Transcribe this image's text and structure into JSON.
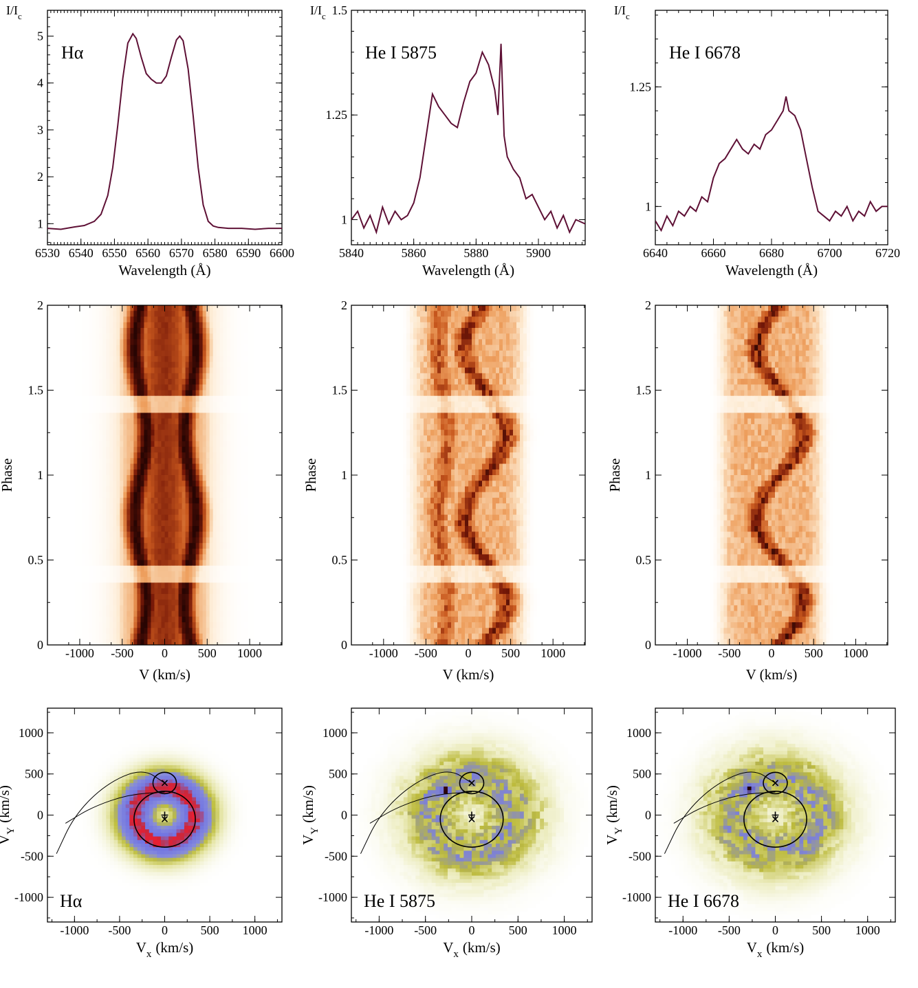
{
  "colors": {
    "profile_line": "#5e1035",
    "trailed_low": "#fff5ea",
    "trailed_mid": "#d9661c",
    "trailed_high": "#3a0a04",
    "tomogram_low": "#ffffff",
    "tomogram_green": "#b7b52a",
    "tomogram_blue": "#7b7fd8",
    "tomogram_red": "#e0203a"
  },
  "chart_data": [
    {
      "id": "profile-halpha",
      "type": "line",
      "annotation": "Hα",
      "xlabel": "Wavelength (Å)",
      "ylabel_main": "I/I",
      "ylabel_sub": "c",
      "xlim": [
        6530,
        6600
      ],
      "ylim": [
        0.55,
        5.55
      ],
      "xticks": [
        6530,
        6540,
        6550,
        6560,
        6570,
        6580,
        6590,
        6600
      ],
      "yticks": [
        1,
        2,
        3,
        4,
        5
      ],
      "ytick_labels": [
        "1",
        "2",
        "3",
        "4",
        "5"
      ],
      "x": [
        6530,
        6534,
        6538,
        6541,
        6544,
        6546,
        6548,
        6549.5,
        6551,
        6552.5,
        6554,
        6555.5,
        6556.5,
        6558,
        6559.5,
        6561,
        6562.5,
        6564,
        6565.5,
        6567,
        6568.5,
        6569.5,
        6570.5,
        6572,
        6573.5,
        6575,
        6576.5,
        6578,
        6579.5,
        6581,
        6584,
        6588,
        6592,
        6596,
        6600
      ],
      "y": [
        0.9,
        0.88,
        0.93,
        0.96,
        1.05,
        1.2,
        1.6,
        2.2,
        3.1,
        4.1,
        4.85,
        5.05,
        4.95,
        4.55,
        4.2,
        4.08,
        4.0,
        4.0,
        4.15,
        4.55,
        4.92,
        5.0,
        4.9,
        4.3,
        3.3,
        2.2,
        1.4,
        1.05,
        0.95,
        0.92,
        0.9,
        0.9,
        0.88,
        0.9,
        0.9
      ]
    },
    {
      "id": "profile-hei5875",
      "type": "line",
      "annotation": "He I 5875",
      "xlabel": "Wavelength (Å)",
      "ylabel_main": "I/I",
      "ylabel_sub": "c",
      "xlim": [
        5840,
        5915
      ],
      "ylim": [
        0.94,
        1.5
      ],
      "xticks": [
        5840,
        5860,
        5880,
        5900
      ],
      "yticks": [
        1,
        1.25,
        1.5
      ],
      "ytick_labels": [
        "1",
        "1.25",
        "1.5"
      ],
      "x": [
        5840,
        5842,
        5844,
        5846,
        5848,
        5850,
        5852,
        5854,
        5856,
        5858,
        5860,
        5862,
        5864,
        5866,
        5868,
        5870,
        5872,
        5874,
        5876,
        5878,
        5880,
        5882,
        5884,
        5886,
        5887,
        5888,
        5889,
        5890,
        5892,
        5894,
        5896,
        5898,
        5900,
        5902,
        5904,
        5906,
        5908,
        5910,
        5912,
        5915
      ],
      "y": [
        1.0,
        1.02,
        0.98,
        1.01,
        0.97,
        1.03,
        0.99,
        1.02,
        1.0,
        1.01,
        1.04,
        1.1,
        1.2,
        1.3,
        1.27,
        1.25,
        1.23,
        1.22,
        1.28,
        1.33,
        1.35,
        1.4,
        1.37,
        1.31,
        1.25,
        1.42,
        1.2,
        1.15,
        1.12,
        1.1,
        1.05,
        1.06,
        1.03,
        1.0,
        1.02,
        0.98,
        1.01,
        0.97,
        1.0,
        0.99
      ]
    },
    {
      "id": "profile-hei6678",
      "type": "line",
      "annotation": "He I 6678",
      "xlabel": "Wavelength (Å)",
      "ylabel_main": "I/I",
      "ylabel_sub": "c",
      "xlim": [
        6640,
        6720
      ],
      "ylim": [
        0.92,
        1.41
      ],
      "xticks": [
        6640,
        6660,
        6680,
        6700,
        6720
      ],
      "yticks": [
        1,
        1.25
      ],
      "ytick_labels": [
        "1",
        "1.25"
      ],
      "x": [
        6640,
        6642,
        6644,
        6646,
        6648,
        6650,
        6652,
        6654,
        6656,
        6658,
        6660,
        6662,
        6664,
        6666,
        6668,
        6670,
        6672,
        6674,
        6676,
        6678,
        6680,
        6682,
        6684,
        6685,
        6686,
        6688,
        6690,
        6692,
        6694,
        6696,
        6698,
        6700,
        6702,
        6704,
        6706,
        6708,
        6710,
        6712,
        6714,
        6716,
        6718,
        6720
      ],
      "y": [
        0.97,
        0.95,
        0.98,
        0.96,
        0.99,
        0.98,
        1.0,
        0.99,
        1.02,
        1.01,
        1.06,
        1.09,
        1.1,
        1.12,
        1.14,
        1.12,
        1.11,
        1.13,
        1.12,
        1.15,
        1.16,
        1.18,
        1.2,
        1.23,
        1.2,
        1.19,
        1.16,
        1.1,
        1.04,
        0.99,
        0.98,
        0.97,
        0.99,
        0.98,
        1.0,
        0.97,
        0.99,
        0.98,
        1.01,
        0.99,
        1.0,
        1.0
      ]
    },
    {
      "id": "trailed-halpha",
      "type": "heatmap",
      "xlabel": "V  (km/s)",
      "ylabel": "Phase",
      "xlim": [
        -1380,
        1380
      ],
      "ylim": [
        0,
        2
      ],
      "xticks": [
        -1000,
        -500,
        0,
        500,
        1000
      ],
      "yticks": [
        0,
        0.5,
        1,
        1.5,
        2
      ],
      "ytick_labels": [
        "0",
        "0.5",
        "1",
        "1.5",
        "2"
      ],
      "components": [
        {
          "center": -280,
          "amplitude": 70,
          "width": 150,
          "peak": 1.0
        },
        {
          "center": 300,
          "amplitude": -70,
          "width": 150,
          "peak": 1.0
        },
        {
          "center": 0,
          "amplitude": 0,
          "width": 430,
          "peak": 0.75
        }
      ],
      "profile_width": 560,
      "noise": 0.08
    },
    {
      "id": "trailed-hei5875",
      "type": "heatmap",
      "xlabel": "V  (km/s)",
      "ylabel": "Phase",
      "xlim": [
        -1380,
        1380
      ],
      "ylim": [
        0,
        2
      ],
      "xticks": [
        -1000,
        -500,
        0,
        500,
        1000
      ],
      "yticks": [
        0,
        0.5,
        1,
        1.5,
        2
      ],
      "ytick_labels": [
        "0",
        "0.5",
        "1",
        "1.5",
        "2"
      ],
      "components": [
        {
          "center": 200,
          "amplitude": 250,
          "width": 170,
          "peak": 0.75
        },
        {
          "center": -300,
          "amplitude": 60,
          "width": 170,
          "peak": 0.6
        }
      ],
      "profile_width": 650,
      "noise": 0.45
    },
    {
      "id": "trailed-hei6678",
      "type": "heatmap",
      "xlabel": "V  (km/s)",
      "ylabel": "Phase",
      "xlim": [
        -1380,
        1380
      ],
      "ylim": [
        0,
        2
      ],
      "xticks": [
        -1000,
        -500,
        0,
        500,
        1000
      ],
      "yticks": [
        0,
        0.5,
        1,
        1.5,
        2
      ],
      "ytick_labels": [
        "0",
        "0.5",
        "1",
        "1.5",
        "2"
      ],
      "components": [
        {
          "center": 100,
          "amplitude": 280,
          "width": 160,
          "peak": 0.8
        }
      ],
      "profile_width": 600,
      "noise": 0.45
    },
    {
      "id": "tomogram-halpha",
      "type": "heatmap",
      "annotation": "Hα",
      "xlabel_main": "V",
      "xlabel_sub": "x",
      "xlabel_unit": "(km/s)",
      "ylabel_main": "V",
      "ylabel_sub": "Y",
      "ylabel_unit": "(km/s)",
      "xlim": [
        -1300,
        1300
      ],
      "ylim": [
        -1300,
        1300
      ],
      "xticks": [
        -1000,
        -500,
        0,
        500,
        1000
      ],
      "yticks": [
        -1000,
        -500,
        0,
        500,
        1000
      ],
      "ytick_labels": [
        "-1000",
        "-500",
        "0",
        "500",
        "1000"
      ],
      "ring_radius": 330,
      "ring_width": 260,
      "ring_peak": 0.95,
      "noise": 0.1,
      "blobs": [
        {
          "vx": -60,
          "vy": -370,
          "radius": 70,
          "level": 1.0
        }
      ]
    },
    {
      "id": "tomogram-hei5875",
      "type": "heatmap",
      "annotation": "He I 5875",
      "xlabel_main": "V",
      "xlabel_sub": "x",
      "xlabel_unit": "(km/s)",
      "ylabel_main": "V",
      "ylabel_sub": "Y",
      "ylabel_unit": "(km/s)",
      "xlim": [
        -1300,
        1300
      ],
      "ylim": [
        -1300,
        1300
      ],
      "xticks": [
        -1000,
        -500,
        0,
        500,
        1000
      ],
      "yticks": [
        -1000,
        -500,
        0,
        500,
        1000
      ],
      "ytick_labels": [
        "-1000",
        "-500",
        "0",
        "500",
        "1000"
      ],
      "ring_radius": 450,
      "ring_width": 400,
      "ring_peak": 0.5,
      "noise": 0.6,
      "blobs": [
        {
          "vx": -280,
          "vy": 300,
          "radius": 90,
          "level": 1.0
        }
      ]
    },
    {
      "id": "tomogram-hei6678",
      "type": "heatmap",
      "annotation": "He I 6678",
      "xlabel_main": "V",
      "xlabel_sub": "x",
      "xlabel_unit": "(km/s)",
      "ylabel_main": "V",
      "ylabel_sub": "Y",
      "ylabel_unit": "(km/s)",
      "xlim": [
        -1300,
        1300
      ],
      "ylim": [
        -1300,
        1300
      ],
      "xticks": [
        -1000,
        -500,
        0,
        500,
        1000
      ],
      "yticks": [
        -1000,
        -500,
        0,
        500,
        1000
      ],
      "ytick_labels": [
        "-1000",
        "-500",
        "0",
        "500",
        "1000"
      ],
      "ring_radius": 450,
      "ring_width": 400,
      "ring_peak": 0.5,
      "noise": 0.6,
      "blobs": [
        {
          "vx": -280,
          "vy": 320,
          "radius": 90,
          "level": 1.0
        }
      ]
    }
  ],
  "roche_overlay": {
    "primary_center": [
      0,
      -50
    ],
    "primary_radius": 340,
    "secondary_center": [
      0,
      390
    ],
    "secondary_radius": 130,
    "stream_outer": [
      [
        0,
        390
      ],
      [
        -250,
        570
      ],
      [
        -650,
        380
      ],
      [
        -1000,
        0
      ],
      [
        -1200,
        -470
      ]
    ],
    "stream_inner": [
      [
        0,
        280
      ],
      [
        -400,
        250
      ],
      [
        -800,
        100
      ],
      [
        -1100,
        -100
      ]
    ]
  }
}
